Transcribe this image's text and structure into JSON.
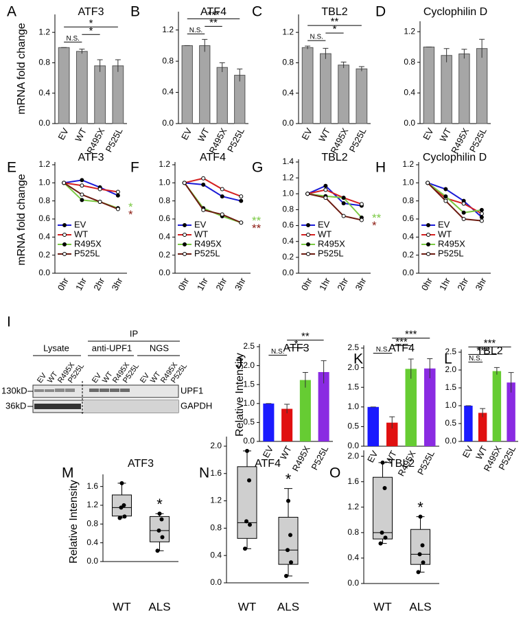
{
  "chart_data": [
    {
      "panel": "A",
      "type": "bar",
      "title": "ATF3",
      "y_label": "mRNA fold change",
      "categories": [
        "EV",
        "WT",
        "R495X",
        "P525L"
      ],
      "values": [
        1.0,
        0.95,
        0.76,
        0.76
      ],
      "errors": [
        0,
        0.03,
        0.08,
        0.08
      ],
      "color": "#a6a6a6",
      "ylim": [
        0,
        1.4
      ],
      "yticks": [
        {
          "value": 0,
          "label": "0.0"
        },
        0.4,
        0.8,
        1.2
      ],
      "significance": [
        {
          "between": [
            "EV",
            "WT"
          ],
          "label": "N.S."
        },
        {
          "between": [
            "WT",
            "R495X"
          ],
          "label": "*"
        },
        {
          "between": [
            "EV",
            "P525L"
          ],
          "label": "*"
        }
      ]
    },
    {
      "panel": "B",
      "type": "bar",
      "title": "ATF4",
      "categories": [
        "EV",
        "WT",
        "R495X",
        "P525L"
      ],
      "values": [
        1.0,
        1.0,
        0.72,
        0.62
      ],
      "errors": [
        0,
        0.08,
        0.06,
        0.08
      ],
      "color": "#a6a6a6",
      "ylim": [
        0,
        1.4
      ],
      "yticks": [
        {
          "value": 0,
          "label": "0.0"
        },
        0.4,
        0.8,
        1.2
      ],
      "significance": [
        {
          "between": [
            "EV",
            "WT"
          ],
          "label": "N.S."
        },
        {
          "between": [
            "WT",
            "R495X"
          ],
          "label": "**"
        },
        {
          "between": [
            "EV",
            "P525L"
          ],
          "label": "***"
        }
      ]
    },
    {
      "panel": "C",
      "type": "bar",
      "title": "TBL2",
      "categories": [
        "EV",
        "WT",
        "R495X",
        "P525L"
      ],
      "values": [
        1.0,
        0.92,
        0.77,
        0.72
      ],
      "errors": [
        0.02,
        0.07,
        0.04,
        0.03
      ],
      "color": "#a6a6a6",
      "ylim": [
        0,
        1.4
      ],
      "yticks": [
        {
          "value": 0,
          "label": "0.0"
        },
        0.4,
        0.8,
        1.2
      ],
      "significance": [
        {
          "between": [
            "EV",
            "WT"
          ],
          "label": "N.S."
        },
        {
          "between": [
            "WT",
            "R495X"
          ],
          "label": "*"
        },
        {
          "between": [
            "EV",
            "P525L"
          ],
          "label": "**"
        }
      ]
    },
    {
      "panel": "D",
      "type": "bar",
      "title": "Cyclophilin D",
      "categories": [
        "EV",
        "WT",
        "R495X",
        "P525L"
      ],
      "values": [
        1.0,
        0.89,
        0.91,
        0.98
      ],
      "errors": [
        0,
        0.09,
        0.06,
        0.12
      ],
      "color": "#a6a6a6",
      "ylim": [
        0,
        1.3
      ],
      "yticks": [
        {
          "value": 0,
          "label": "0.0"
        },
        0.4,
        0.8,
        1.2
      ]
    },
    {
      "panel": "E",
      "type": "line",
      "title": "ATF3",
      "y_label": "mRNA fold change",
      "categories": [
        "0hr",
        "1hr",
        "2hr",
        "3hr"
      ],
      "ylim": [
        0,
        1.2
      ],
      "yticks": [
        {
          "value": 0,
          "label": "0.0"
        },
        0.2,
        0.4,
        0.6,
        0.8,
        {
          "value": 1,
          "label": "1.0"
        },
        1.2
      ],
      "legend": "lower left",
      "series": [
        {
          "name": "EV",
          "color": "#1a1ad6",
          "values": [
            1,
            1.03,
            0.95,
            0.86
          ]
        },
        {
          "name": "WT",
          "color": "#d42020",
          "values": [
            1,
            0.97,
            0.93,
            0.9
          ]
        },
        {
          "name": "R495X",
          "color": "#7ac943",
          "values": [
            1,
            0.81,
            0.79,
            0.72
          ]
        },
        {
          "name": "P525L",
          "color": "#6b1a10",
          "values": [
            1,
            0.87,
            0.79,
            0.71
          ]
        }
      ],
      "annotations": [
        {
          "text": "*",
          "color": "#7ac943"
        },
        {
          "text": "*",
          "color": "#8b1a10"
        }
      ]
    },
    {
      "panel": "F",
      "type": "line",
      "title": "ATF4",
      "categories": [
        "0hr",
        "1hr",
        "2hr",
        "3hr"
      ],
      "ylim": [
        0,
        1.2
      ],
      "yticks": [
        {
          "value": 0,
          "label": "0.0"
        },
        0.2,
        0.4,
        0.6,
        0.8,
        {
          "value": 1,
          "label": "1.0"
        },
        1.2
      ],
      "legend": "lower left",
      "series": [
        {
          "name": "EV",
          "color": "#1a1ad6",
          "values": [
            1,
            0.98,
            0.85,
            0.8
          ]
        },
        {
          "name": "WT",
          "color": "#d42020",
          "values": [
            1,
            1.05,
            0.93,
            0.85
          ]
        },
        {
          "name": "R495X",
          "color": "#7ac943",
          "values": [
            1,
            0.72,
            0.63,
            0.56
          ]
        },
        {
          "name": "P525L",
          "color": "#6b1a10",
          "values": [
            1,
            0.7,
            0.65,
            0.56
          ]
        }
      ],
      "annotations": [
        {
          "text": "**",
          "color": "#7ac943"
        },
        {
          "text": "**",
          "color": "#8b1a10"
        }
      ]
    },
    {
      "panel": "G",
      "type": "line",
      "title": "TBL2",
      "categories": [
        "0hr",
        "1hr",
        "2hr",
        "3hr"
      ],
      "ylim": [
        0,
        1.4
      ],
      "yticks": [
        {
          "value": 0,
          "label": "0.0"
        },
        0.2,
        0.4,
        0.6,
        0.8,
        {
          "value": 1,
          "label": "1.0"
        },
        1.2,
        1.4
      ],
      "legend": "lower left",
      "series": [
        {
          "name": "EV",
          "color": "#1a1ad6",
          "values": [
            1,
            1.1,
            0.88,
            0.85
          ]
        },
        {
          "name": "WT",
          "color": "#d42020",
          "values": [
            1,
            1.05,
            0.95,
            0.87
          ]
        },
        {
          "name": "R495X",
          "color": "#7ac943",
          "values": [
            1,
            0.97,
            0.95,
            0.7
          ]
        },
        {
          "name": "P525L",
          "color": "#6b1a10",
          "values": [
            1,
            0.95,
            0.72,
            0.67
          ]
        }
      ],
      "annotations": [
        {
          "text": "**",
          "color": "#7ac943"
        },
        {
          "text": "*",
          "color": "#8b1a10"
        }
      ]
    },
    {
      "panel": "H",
      "type": "line",
      "title": "Cyclophilin D",
      "categories": [
        "0hr",
        "1hr",
        "2hr",
        "3hr"
      ],
      "ylim": [
        0,
        1.2
      ],
      "yticks": [
        {
          "value": 0,
          "label": "0.0"
        },
        0.2,
        0.4,
        0.6,
        0.8,
        {
          "value": 1,
          "label": "1.0"
        },
        1.2
      ],
      "legend": "lower left",
      "series": [
        {
          "name": "EV",
          "color": "#1a1ad6",
          "values": [
            1,
            0.93,
            0.8,
            0.62
          ]
        },
        {
          "name": "WT",
          "color": "#d42020",
          "values": [
            1,
            0.83,
            0.77,
            0.66
          ]
        },
        {
          "name": "R495X",
          "color": "#7ac943",
          "values": [
            1,
            0.85,
            0.67,
            0.7
          ]
        },
        {
          "name": "P525L",
          "color": "#6b1a10",
          "values": [
            1,
            0.8,
            0.6,
            0.58
          ]
        }
      ]
    },
    {
      "panel": "J",
      "type": "bar",
      "title": "ATF3",
      "y_label": "Relative Intensity",
      "categories": [
        "EV",
        "WT",
        "R495X",
        "P525L"
      ],
      "values": [
        1.0,
        0.86,
        1.62,
        1.83
      ],
      "errors": [
        0,
        0.12,
        0.2,
        0.3
      ],
      "colors": [
        "#1a1aff",
        "#e01010",
        "#66cc33",
        "#8a2be2"
      ],
      "ylim": [
        0,
        2.5
      ],
      "yticks": [
        {
          "value": 0,
          "label": "0.0"
        },
        0.5,
        {
          "value": 1,
          "label": "1.0"
        },
        1.5,
        {
          "value": 2,
          "label": "2.0"
        },
        2.5
      ],
      "significance": [
        {
          "between": [
            "EV",
            "WT"
          ],
          "label": "N.S."
        },
        {
          "between": [
            "WT",
            "R495X"
          ],
          "label": "*"
        },
        {
          "between": [
            "WT",
            "P525L"
          ],
          "label": "**"
        }
      ]
    },
    {
      "panel": "K",
      "type": "bar",
      "title": "ATF4",
      "categories": [
        "EV",
        "WT",
        "R495X",
        "P525L"
      ],
      "values": [
        1.0,
        0.6,
        1.97,
        1.98
      ],
      "errors": [
        0,
        0.15,
        0.25,
        0.25
      ],
      "colors": [
        "#1a1aff",
        "#e01010",
        "#66cc33",
        "#8a2be2"
      ],
      "ylim": [
        0,
        2.5
      ],
      "yticks": [
        {
          "value": 0,
          "label": "0.0"
        },
        0.5,
        {
          "value": 1,
          "label": "1.0"
        },
        1.5,
        {
          "value": 2,
          "label": "2.0"
        },
        2.5
      ],
      "significance": [
        {
          "between": [
            "EV",
            "WT"
          ],
          "label": "N.S."
        },
        {
          "between": [
            "WT",
            "R495X"
          ],
          "label": "***"
        },
        {
          "between": [
            "WT",
            "P525L"
          ],
          "label": "***"
        }
      ]
    },
    {
      "panel": "L",
      "type": "bar",
      "title": "TBL2",
      "categories": [
        "EV",
        "WT",
        "R495X",
        "P525L"
      ],
      "values": [
        1.0,
        0.8,
        1.97,
        1.65
      ],
      "errors": [
        0,
        0.12,
        0.1,
        0.28
      ],
      "colors": [
        "#1a1aff",
        "#e01010",
        "#66cc33",
        "#8a2be2"
      ],
      "ylim": [
        0,
        2.5
      ],
      "yticks": [
        {
          "value": 0,
          "label": "0.0"
        },
        0.5,
        {
          "value": 1,
          "label": "1.0"
        },
        1.5,
        {
          "value": 2,
          "label": "2.0"
        },
        2.5
      ],
      "significance": [
        {
          "between": [
            "EV",
            "WT"
          ],
          "label": "N.S."
        },
        {
          "between": [
            "EV",
            "R495X"
          ],
          "label": "***"
        },
        {
          "between": [
            "EV",
            "P525L"
          ],
          "label": "***"
        }
      ]
    },
    {
      "panel": "M",
      "type": "box",
      "title": "ATF3",
      "y_label": "Relative Intensity",
      "categories": [
        "WT",
        "ALS"
      ],
      "ylim": [
        0,
        1.8
      ],
      "yticks": [
        {
          "value": 0,
          "label": "0.0"
        },
        0.4,
        0.8,
        1.2,
        1.6
      ],
      "boxes": [
        {
          "min": 0.93,
          "q1": 0.97,
          "median": 1.15,
          "q3": 1.42,
          "max": 1.67,
          "points": [
            0.93,
            0.96,
            1.15,
            1.2,
            1.67
          ]
        },
        {
          "min": 0.23,
          "q1": 0.42,
          "median": 0.66,
          "q3": 0.96,
          "max": 1.02,
          "points": [
            0.23,
            0.52,
            0.66,
            0.9,
            1.02
          ]
        }
      ],
      "annotations": [
        {
          "text": "*",
          "category": "ALS"
        }
      ]
    },
    {
      "panel": "N",
      "type": "box",
      "title": "ATF4",
      "categories": [
        "WT",
        "ALS"
      ],
      "ylim": [
        0,
        2.1
      ],
      "yticks": [
        {
          "value": 0,
          "label": "0.0"
        },
        0.4,
        0.8,
        1.2,
        1.6,
        {
          "value": 2,
          "label": "2.0"
        }
      ],
      "boxes": [
        {
          "min": 0.5,
          "q1": 0.65,
          "median": 0.88,
          "q3": 1.7,
          "max": 1.93,
          "points": [
            0.5,
            0.85,
            0.9,
            1.5,
            1.93
          ]
        },
        {
          "min": 0.1,
          "q1": 0.27,
          "median": 0.48,
          "q3": 0.96,
          "max": 1.38,
          "points": [
            0.1,
            0.3,
            0.48,
            0.7,
            1.2
          ]
        }
      ],
      "annotations": [
        {
          "text": "*",
          "category": "ALS"
        }
      ]
    },
    {
      "panel": "O",
      "type": "box",
      "title": "TBL2",
      "categories": [
        "WT",
        "ALS"
      ],
      "ylim": [
        0,
        2.05
      ],
      "yticks": [
        {
          "value": 0,
          "label": "0.0"
        },
        0.4,
        0.8,
        1.2,
        1.6,
        {
          "value": 2,
          "label": "2.0"
        }
      ],
      "boxes": [
        {
          "min": 0.63,
          "q1": 0.7,
          "median": 0.8,
          "q3": 1.67,
          "max": 1.9,
          "points": [
            0.63,
            0.72,
            0.8,
            1.5,
            1.9
          ]
        },
        {
          "min": 0.18,
          "q1": 0.3,
          "median": 0.46,
          "q3": 0.85,
          "max": 1.05,
          "points": [
            0.18,
            0.33,
            0.46,
            0.6,
            1.05
          ]
        }
      ],
      "annotations": [
        {
          "text": "*",
          "category": "ALS"
        }
      ]
    }
  ],
  "blot": {
    "panel": "I",
    "ip_label": "IP",
    "groups": [
      "Lysate",
      "anti-UPF1",
      "NGS"
    ],
    "lanes": [
      "EV",
      "WT",
      "R495X",
      "P525L"
    ],
    "markers": [
      "130kD",
      "36kD"
    ],
    "proteins": [
      "UPF1",
      "GAPDH"
    ]
  }
}
